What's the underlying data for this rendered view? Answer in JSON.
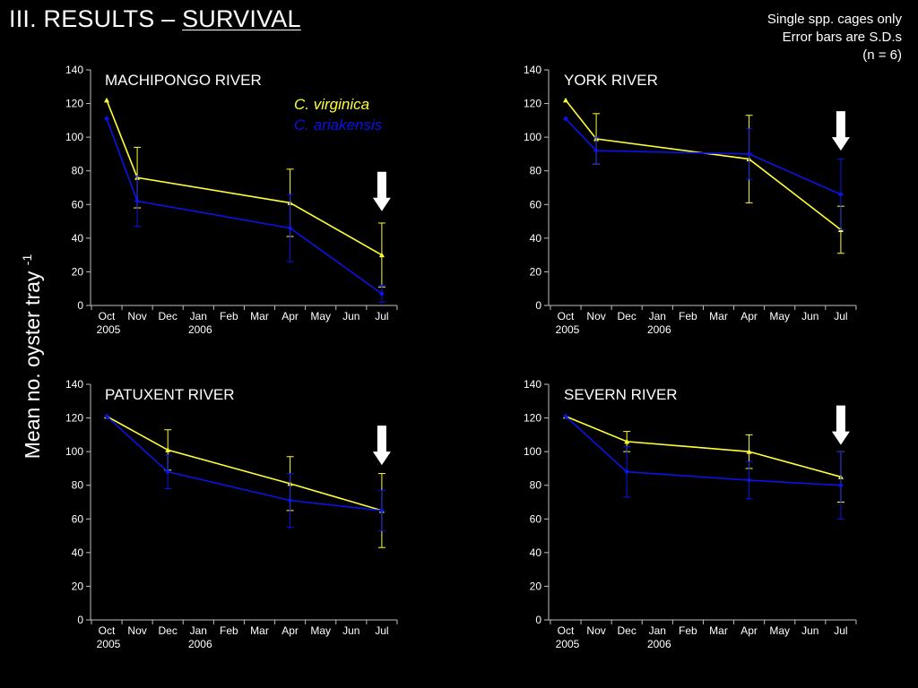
{
  "header": {
    "title_prefix": "III. RESULTS – ",
    "title_accent": "SURVIVAL",
    "notes": [
      "Single spp. cages only",
      "Error bars are S.D.s",
      "(n = 6)"
    ]
  },
  "shared_ylabel": {
    "text": "Mean no. oyster tray",
    "sup": "-1"
  },
  "colors": {
    "virginica": "#ffff33",
    "ariakensis": "#0a14e6",
    "axis": "#bfbfbf",
    "arrow": "#ffffff"
  },
  "legend": [
    "C. virginica",
    "C. ariakensis"
  ],
  "chart_data": [
    {
      "type": "line",
      "title": "MACHIPONGO RIVER",
      "categories": [
        "Oct",
        "Nov",
        "Dec",
        "Jan",
        "Feb",
        "Mar",
        "Apr",
        "May",
        "Jun",
        "Jul"
      ],
      "year_labels": [
        {
          "at": "Oct",
          "text": "2005"
        },
        {
          "at": "Jan",
          "text": "2006"
        }
      ],
      "ylim": [
        0,
        140
      ],
      "yticks": [
        0,
        20,
        40,
        60,
        80,
        100,
        120,
        140
      ],
      "arrow_at": "Jul",
      "arrow_above": 56,
      "legend_placement": "top-right",
      "series": [
        {
          "name": "C. virginica",
          "color": "#ffff33",
          "x": [
            "Oct",
            "Nov",
            "Apr",
            "Jul"
          ],
          "y": [
            122,
            76,
            61,
            30
          ],
          "err": [
            0,
            18,
            20,
            19
          ]
        },
        {
          "name": "C. ariakensis",
          "color": "#0a14e6",
          "x": [
            "Oct",
            "Nov",
            "Apr",
            "Jul"
          ],
          "y": [
            111,
            62,
            46,
            7
          ],
          "err": [
            0,
            15,
            20,
            5
          ]
        }
      ]
    },
    {
      "type": "line",
      "title": "YORK RIVER",
      "categories": [
        "Oct",
        "Nov",
        "Dec",
        "Jan",
        "Feb",
        "Mar",
        "Apr",
        "May",
        "Jun",
        "Jul"
      ],
      "year_labels": [
        {
          "at": "Oct",
          "text": "2005"
        },
        {
          "at": "Jan",
          "text": "2006"
        }
      ],
      "ylim": [
        0,
        140
      ],
      "yticks": [
        0,
        20,
        40,
        60,
        80,
        100,
        120,
        140
      ],
      "arrow_at": "Jul",
      "arrow_above": 92,
      "series": [
        {
          "name": "C. virginica",
          "color": "#ffff33",
          "x": [
            "Oct",
            "Nov",
            "Apr",
            "Jul"
          ],
          "y": [
            122,
            99,
            87,
            45
          ],
          "err": [
            0,
            15,
            26,
            14
          ]
        },
        {
          "name": "C. ariakensis",
          "color": "#0a14e6",
          "x": [
            "Oct",
            "Nov",
            "Apr",
            "Jul"
          ],
          "y": [
            111,
            92,
            90,
            66
          ],
          "err": [
            0,
            8,
            15,
            21
          ]
        }
      ]
    },
    {
      "type": "line",
      "title": "PATUXENT RIVER",
      "categories": [
        "Oct",
        "Nov",
        "Dec",
        "Jan",
        "Feb",
        "Mar",
        "Apr",
        "May",
        "Jun",
        "Jul"
      ],
      "year_labels": [
        {
          "at": "Oct",
          "text": "2005"
        },
        {
          "at": "Jan",
          "text": "2006"
        }
      ],
      "ylim": [
        0,
        140
      ],
      "yticks": [
        0,
        20,
        40,
        60,
        80,
        100,
        120,
        140
      ],
      "arrow_at": "Jul",
      "arrow_above": 92,
      "series": [
        {
          "name": "C. virginica",
          "color": "#ffff33",
          "x": [
            "Oct",
            "Dec",
            "Apr",
            "Jul"
          ],
          "y": [
            121,
            101,
            81,
            65
          ],
          "err": [
            0,
            12,
            16,
            22
          ]
        },
        {
          "name": "C. ariakensis",
          "color": "#0a14e6",
          "x": [
            "Oct",
            "Dec",
            "Apr",
            "Jul"
          ],
          "y": [
            121,
            88,
            71,
            65
          ],
          "err": [
            0,
            10,
            16,
            12
          ]
        }
      ]
    },
    {
      "type": "line",
      "title": "SEVERN RIVER",
      "categories": [
        "Oct",
        "Nov",
        "Dec",
        "Jan",
        "Feb",
        "Mar",
        "Apr",
        "May",
        "Jun",
        "Jul"
      ],
      "year_labels": [
        {
          "at": "Oct",
          "text": "2005"
        },
        {
          "at": "Jan",
          "text": "2006"
        }
      ],
      "ylim": [
        0,
        140
      ],
      "yticks": [
        0,
        20,
        40,
        60,
        80,
        100,
        120,
        140
      ],
      "arrow_at": "Jul",
      "arrow_above": 104,
      "series": [
        {
          "name": "C. virginica",
          "color": "#ffff33",
          "x": [
            "Oct",
            "Dec",
            "Apr",
            "Jul"
          ],
          "y": [
            121,
            106,
            100,
            85
          ],
          "err": [
            0,
            6,
            10,
            15
          ]
        },
        {
          "name": "C. ariakensis",
          "color": "#0a14e6",
          "x": [
            "Oct",
            "Dec",
            "Apr",
            "Jul"
          ],
          "y": [
            121,
            88,
            83,
            80
          ],
          "err": [
            0,
            15,
            11,
            20
          ]
        }
      ]
    }
  ]
}
